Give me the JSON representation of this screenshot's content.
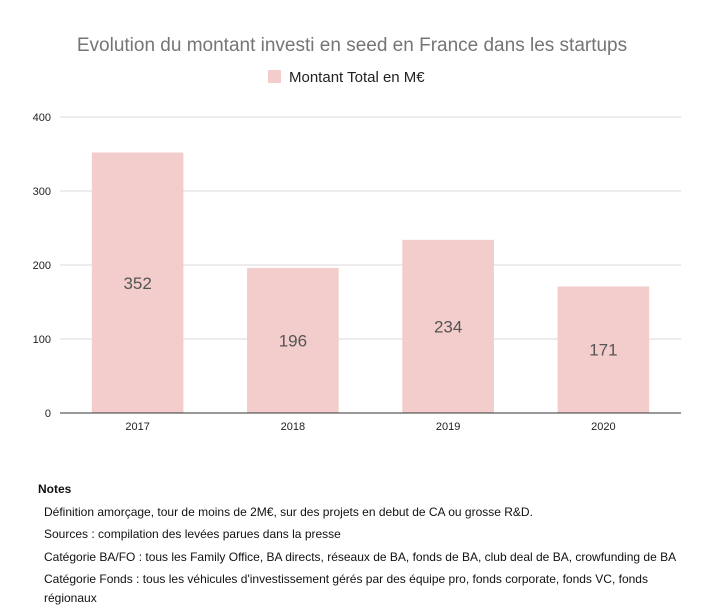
{
  "chart_data": {
    "type": "bar",
    "title": "Evolution du montant investi en seed en France dans les startups",
    "legend": {
      "label": "Montant Total en M€",
      "position": "top"
    },
    "categories": [
      "2017",
      "2018",
      "2019",
      "2020"
    ],
    "series": [
      {
        "name": "Montant Total en M€",
        "values": [
          352,
          196,
          234,
          171
        ],
        "color": "#f2cdcc"
      }
    ],
    "data_labels": [
      "352",
      "196",
      "234",
      "171"
    ],
    "y_ticks": [
      "0",
      "100",
      "200",
      "300",
      "400"
    ],
    "ylim": [
      0,
      400
    ],
    "grid": true
  },
  "notes": {
    "title": "Notes",
    "lines": [
      "Définition amorçage, tour de moins de 2M€, sur des projets en debut de CA ou grosse R&D.",
      "Sources : compilation des levées parues dans la presse",
      "Catégorie BA/FO : tous les Family Office, BA directs, réseaux de BA, fonds de BA, club deal de BA, crowfunding de BA",
      "Catégorie Fonds : tous les véhicules d'investissement gérés par des équipe pro, fonds corporate, fonds VC, fonds régionaux"
    ]
  }
}
